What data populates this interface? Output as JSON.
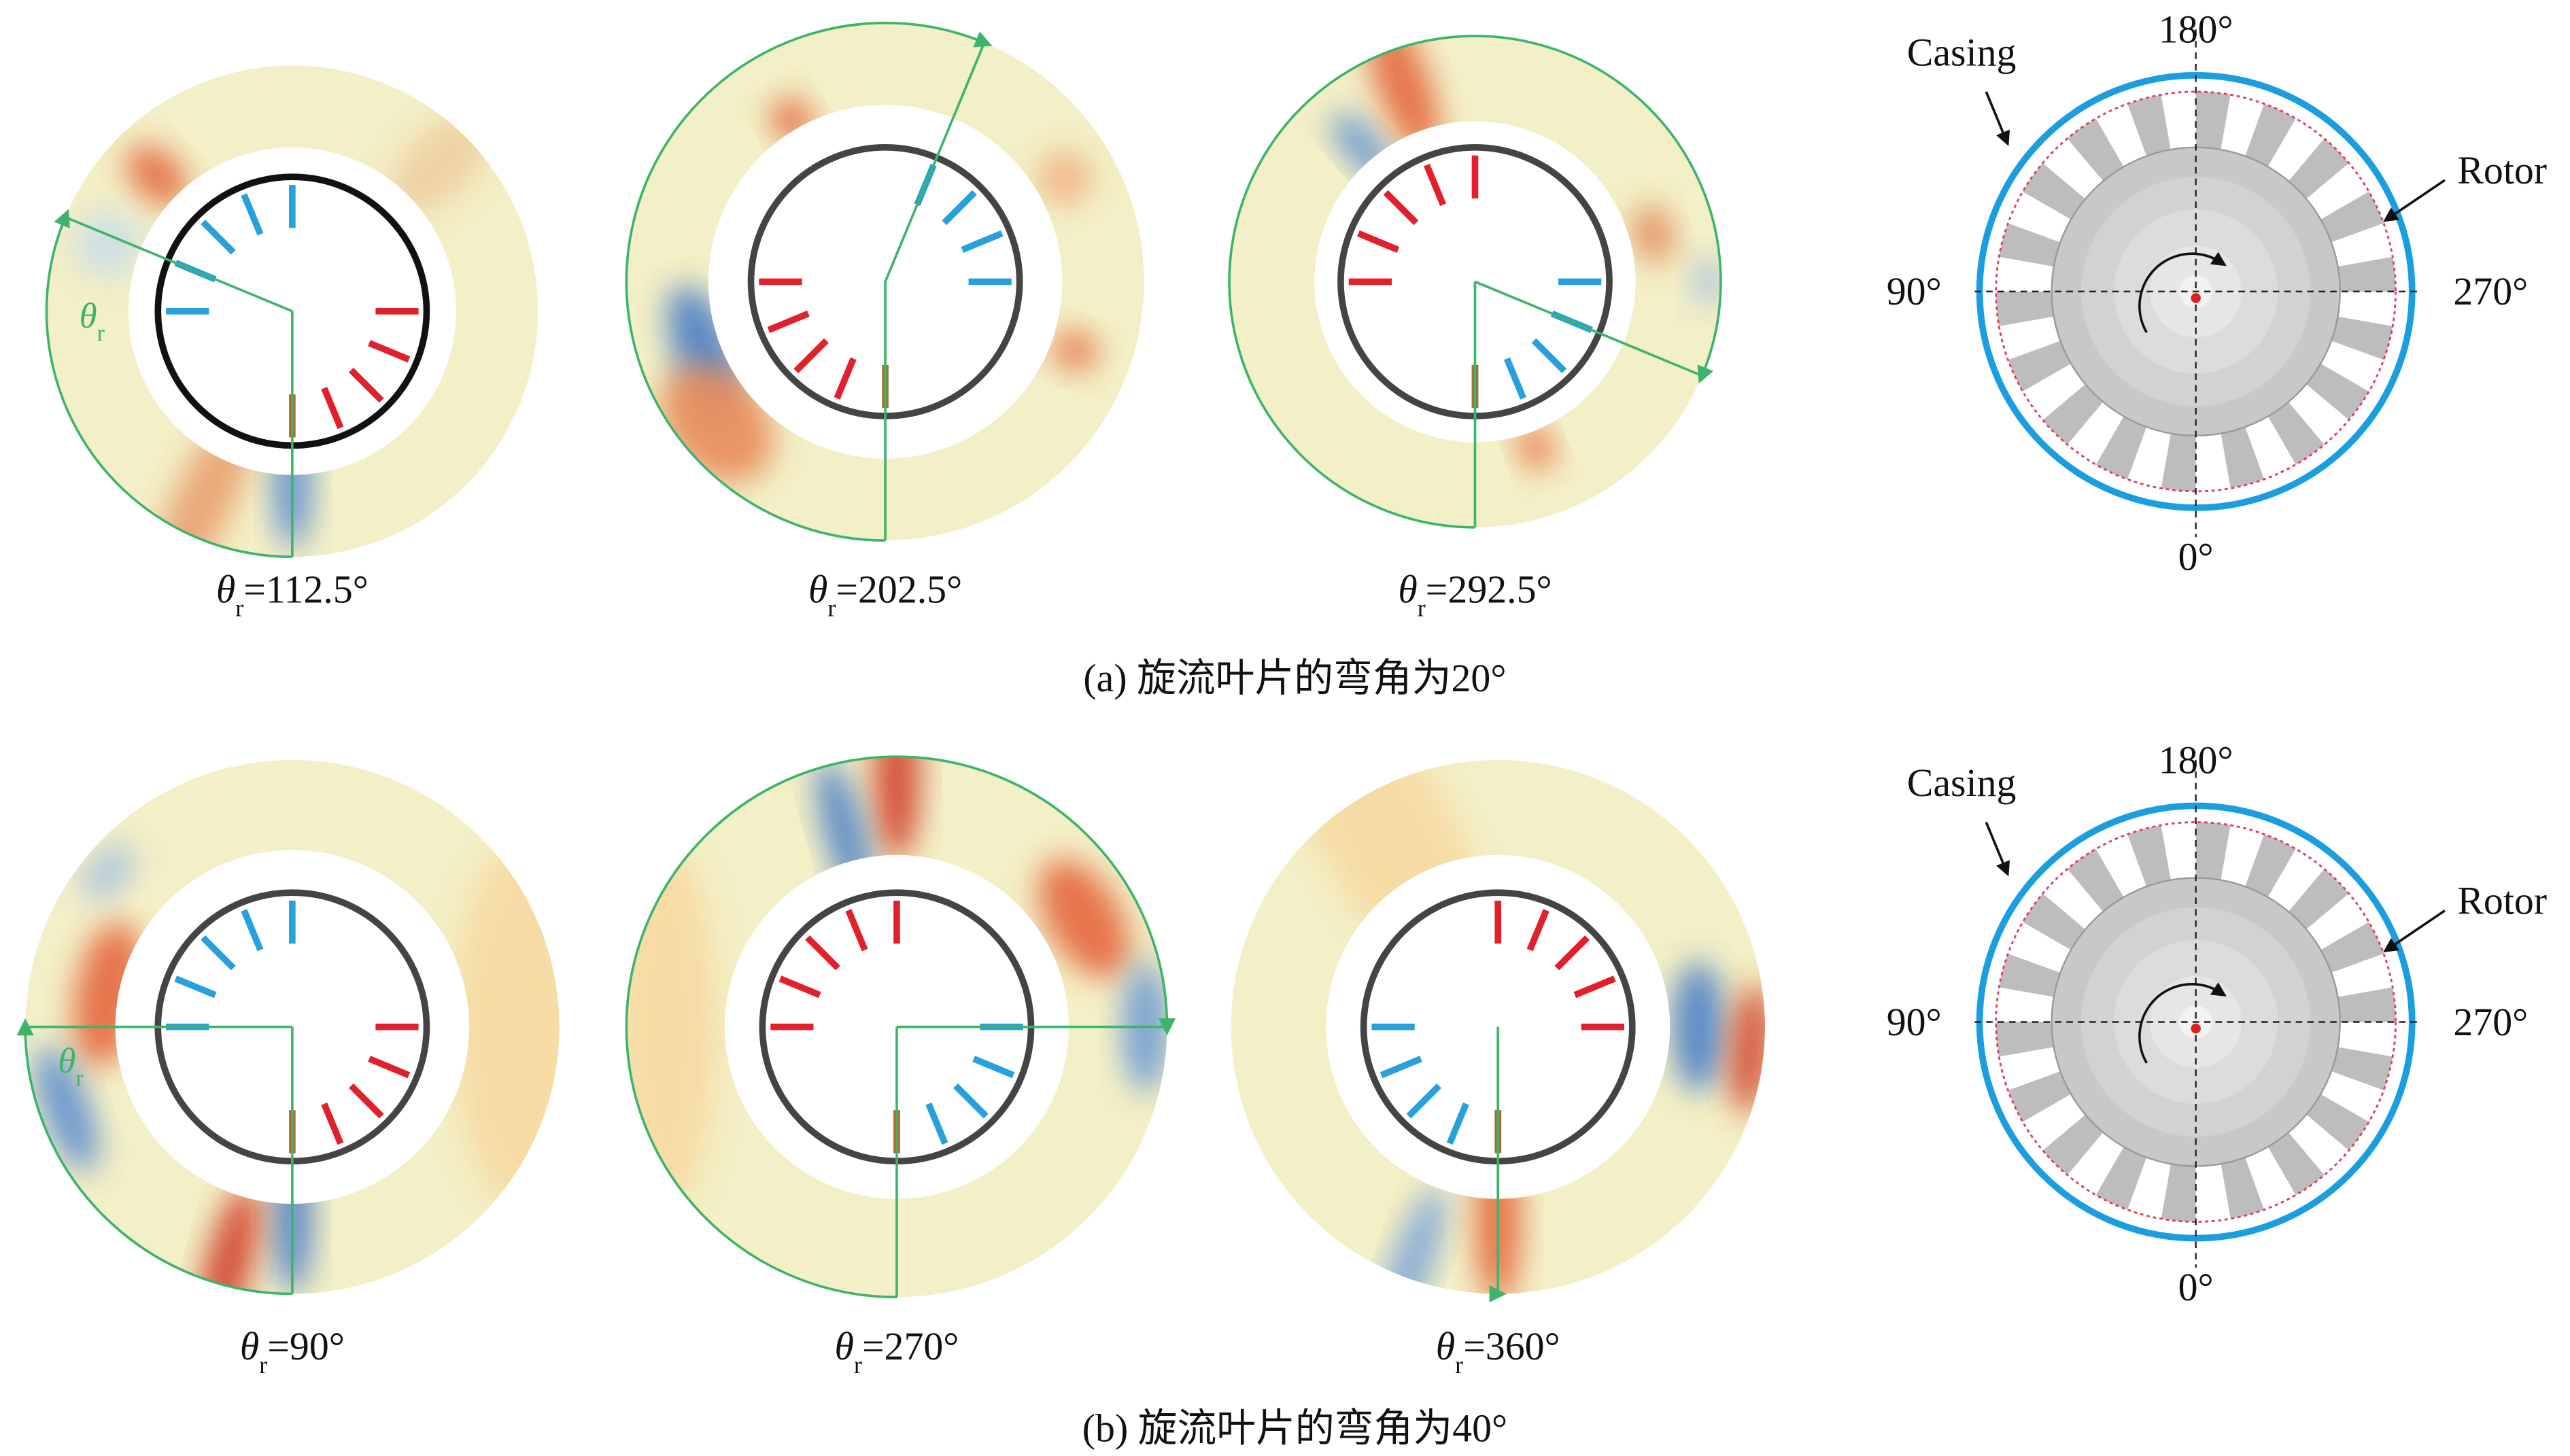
{
  "rows": [
    {
      "panels": [
        {
          "label": {
            "symbol": "θ",
            "sub": "r",
            "value": "=112.5°"
          },
          "marker": {
            "symbol": "θ",
            "sub": "r"
          }
        },
        {
          "label": {
            "symbol": "θ",
            "sub": "r",
            "value": "=202.5°"
          }
        },
        {
          "label": {
            "symbol": "θ",
            "sub": "r",
            "value": "=292.5°"
          }
        }
      ],
      "caption": "(a) 旋流叶片的弯角为20°",
      "schematic": {
        "casing": "Casing",
        "rotor": "Rotor",
        "top": "180°",
        "left": "90°",
        "right": "270°",
        "bottom": "0°"
      }
    },
    {
      "panels": [
        {
          "label": {
            "symbol": "θ",
            "sub": "r",
            "value": "=90°"
          },
          "marker": {
            "symbol": "θ",
            "sub": "r"
          }
        },
        {
          "label": {
            "symbol": "θ",
            "sub": "r",
            "value": "=270°"
          }
        },
        {
          "label": {
            "symbol": "θ",
            "sub": "r",
            "value": "=360°"
          }
        }
      ],
      "caption": "(b) 旋流叶片的弯角为40°",
      "schematic": {
        "casing": "Casing",
        "rotor": "Rotor",
        "top": "180°",
        "left": "90°",
        "right": "270°",
        "bottom": "0°"
      }
    }
  ]
}
